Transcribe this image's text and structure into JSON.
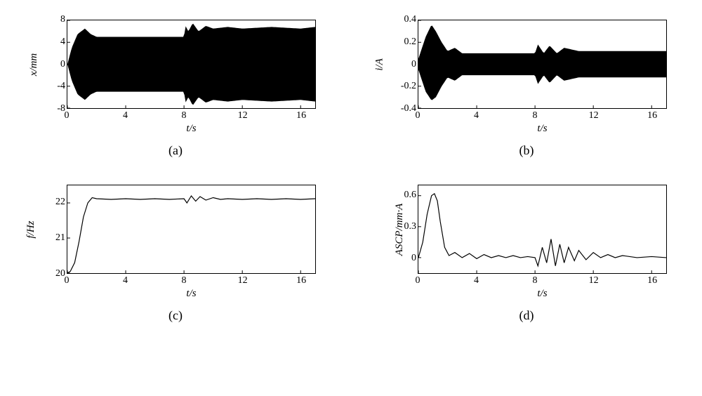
{
  "figure": {
    "background_color": "#ffffff",
    "line_color": "#000000",
    "font_family": "Times New Roman",
    "panels": [
      {
        "id": "a",
        "caption": "(a)",
        "type": "oscillation-dense",
        "x_label": "t/s",
        "y_label": "x/mm",
        "xlim": [
          0,
          17
        ],
        "ylim": [
          -8,
          8
        ],
        "x_ticks": [
          0,
          4,
          8,
          12,
          16
        ],
        "y_ticks": [
          -8,
          -4,
          0,
          4,
          8
        ],
        "envelope_top": [
          [
            0,
            0
          ],
          [
            0.3,
            3
          ],
          [
            0.7,
            5.5
          ],
          [
            1.2,
            6.5
          ],
          [
            1.6,
            5.5
          ],
          [
            2,
            5
          ],
          [
            3,
            5
          ],
          [
            4,
            5
          ],
          [
            5,
            5
          ],
          [
            6,
            5
          ],
          [
            7,
            5
          ],
          [
            8,
            5
          ],
          [
            8.1,
            7
          ],
          [
            8.3,
            6
          ],
          [
            8.6,
            7.5
          ],
          [
            9,
            6
          ],
          [
            9.5,
            7
          ],
          [
            10,
            6.5
          ],
          [
            11,
            6.8
          ],
          [
            12,
            6.5
          ],
          [
            14,
            6.8
          ],
          [
            16,
            6.5
          ],
          [
            17,
            6.8
          ]
        ],
        "envelope_bottom": [
          [
            0,
            0
          ],
          [
            0.3,
            -3
          ],
          [
            0.7,
            -5.5
          ],
          [
            1.2,
            -6.5
          ],
          [
            1.6,
            -5.5
          ],
          [
            2,
            -5
          ],
          [
            3,
            -5
          ],
          [
            4,
            -5
          ],
          [
            5,
            -5
          ],
          [
            6,
            -5
          ],
          [
            7,
            -5
          ],
          [
            8,
            -5
          ],
          [
            8.1,
            -7
          ],
          [
            8.3,
            -6
          ],
          [
            8.6,
            -7.5
          ],
          [
            9,
            -6
          ],
          [
            9.5,
            -7
          ],
          [
            10,
            -6.5
          ],
          [
            11,
            -6.8
          ],
          [
            12,
            -6.5
          ],
          [
            14,
            -6.8
          ],
          [
            16,
            -6.5
          ],
          [
            17,
            -6.8
          ]
        ]
      },
      {
        "id": "b",
        "caption": "(b)",
        "type": "oscillation-dense",
        "x_label": "t/s",
        "y_label": "i/A",
        "xlim": [
          0,
          17
        ],
        "ylim": [
          -0.4,
          0.4
        ],
        "x_ticks": [
          0,
          4,
          8,
          12,
          16
        ],
        "y_ticks": [
          -0.4,
          -0.2,
          0,
          0.2,
          0.4
        ],
        "envelope_top": [
          [
            0,
            0.05
          ],
          [
            0.5,
            0.25
          ],
          [
            0.9,
            0.36
          ],
          [
            1.2,
            0.3
          ],
          [
            1.6,
            0.2
          ],
          [
            2,
            0.12
          ],
          [
            2.5,
            0.15
          ],
          [
            3,
            0.1
          ],
          [
            4,
            0.1
          ],
          [
            5,
            0.1
          ],
          [
            6,
            0.1
          ],
          [
            7,
            0.1
          ],
          [
            8,
            0.1
          ],
          [
            8.2,
            0.18
          ],
          [
            8.6,
            0.1
          ],
          [
            9,
            0.17
          ],
          [
            9.5,
            0.1
          ],
          [
            10,
            0.15
          ],
          [
            11,
            0.12
          ],
          [
            12,
            0.12
          ],
          [
            14,
            0.12
          ],
          [
            16,
            0.12
          ],
          [
            17,
            0.12
          ]
        ],
        "envelope_bottom": [
          [
            0,
            -0.05
          ],
          [
            0.5,
            -0.25
          ],
          [
            0.9,
            -0.33
          ],
          [
            1.2,
            -0.3
          ],
          [
            1.6,
            -0.2
          ],
          [
            2,
            -0.12
          ],
          [
            2.5,
            -0.15
          ],
          [
            3,
            -0.1
          ],
          [
            4,
            -0.1
          ],
          [
            5,
            -0.1
          ],
          [
            6,
            -0.1
          ],
          [
            7,
            -0.1
          ],
          [
            8,
            -0.1
          ],
          [
            8.2,
            -0.18
          ],
          [
            8.6,
            -0.1
          ],
          [
            9,
            -0.17
          ],
          [
            9.5,
            -0.1
          ],
          [
            10,
            -0.15
          ],
          [
            11,
            -0.12
          ],
          [
            12,
            -0.12
          ],
          [
            14,
            -0.12
          ],
          [
            16,
            -0.12
          ],
          [
            17,
            -0.12
          ]
        ]
      },
      {
        "id": "c",
        "caption": "(c)",
        "type": "line",
        "x_label": "t/s",
        "y_label": "f/Hz",
        "xlim": [
          0,
          17
        ],
        "ylim": [
          20,
          22.5
        ],
        "x_ticks": [
          0,
          4,
          8,
          12,
          16
        ],
        "y_ticks": [
          20,
          21,
          22
        ],
        "line": [
          [
            0,
            20
          ],
          [
            0.2,
            20.05
          ],
          [
            0.5,
            20.3
          ],
          [
            0.8,
            20.9
          ],
          [
            1.1,
            21.6
          ],
          [
            1.4,
            22.0
          ],
          [
            1.7,
            22.15
          ],
          [
            2,
            22.12
          ],
          [
            3,
            22.1
          ],
          [
            4,
            22.12
          ],
          [
            5,
            22.1
          ],
          [
            6,
            22.12
          ],
          [
            7,
            22.1
          ],
          [
            8,
            22.12
          ],
          [
            8.2,
            22.0
          ],
          [
            8.5,
            22.2
          ],
          [
            8.8,
            22.05
          ],
          [
            9.1,
            22.18
          ],
          [
            9.5,
            22.08
          ],
          [
            10,
            22.15
          ],
          [
            10.5,
            22.1
          ],
          [
            11,
            22.12
          ],
          [
            12,
            22.1
          ],
          [
            13,
            22.12
          ],
          [
            14,
            22.1
          ],
          [
            15,
            22.12
          ],
          [
            16,
            22.1
          ],
          [
            17,
            22.12
          ]
        ]
      },
      {
        "id": "d",
        "caption": "(d)",
        "type": "line",
        "x_label": "t/s",
        "y_label": "ASCP/mm·A",
        "xlim": [
          0,
          17
        ],
        "ylim": [
          -0.15,
          0.7
        ],
        "x_ticks": [
          0,
          4,
          8,
          12,
          16
        ],
        "y_ticks": [
          0,
          0.3,
          0.6
        ],
        "line": [
          [
            0,
            0
          ],
          [
            0.3,
            0.15
          ],
          [
            0.6,
            0.42
          ],
          [
            0.9,
            0.6
          ],
          [
            1.1,
            0.62
          ],
          [
            1.3,
            0.55
          ],
          [
            1.5,
            0.35
          ],
          [
            1.8,
            0.1
          ],
          [
            2.1,
            0.02
          ],
          [
            2.5,
            0.05
          ],
          [
            3,
            0
          ],
          [
            3.5,
            0.04
          ],
          [
            4,
            -0.01
          ],
          [
            4.5,
            0.03
          ],
          [
            5,
            0
          ],
          [
            5.5,
            0.02
          ],
          [
            6,
            0
          ],
          [
            6.5,
            0.02
          ],
          [
            7,
            0
          ],
          [
            7.5,
            0.01
          ],
          [
            8,
            0
          ],
          [
            8.2,
            -0.08
          ],
          [
            8.5,
            0.1
          ],
          [
            8.8,
            -0.05
          ],
          [
            9.1,
            0.18
          ],
          [
            9.4,
            -0.08
          ],
          [
            9.7,
            0.13
          ],
          [
            10,
            -0.05
          ],
          [
            10.3,
            0.1
          ],
          [
            10.7,
            -0.03
          ],
          [
            11,
            0.07
          ],
          [
            11.5,
            -0.02
          ],
          [
            12,
            0.05
          ],
          [
            12.5,
            0
          ],
          [
            13,
            0.03
          ],
          [
            13.5,
            0
          ],
          [
            14,
            0.02
          ],
          [
            15,
            0
          ],
          [
            16,
            0.01
          ],
          [
            17,
            0
          ]
        ]
      }
    ]
  }
}
